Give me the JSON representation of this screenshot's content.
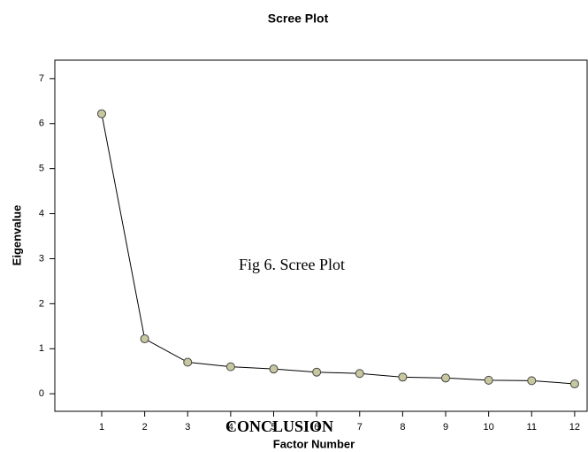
{
  "chart_data": {
    "type": "line",
    "title": "Scree Plot",
    "x_label": "Factor Number",
    "y_label": "Eigenvalue",
    "annotations": [
      "Fig 6. Scree Plot",
      "CONCLUSION"
    ],
    "x": [
      1,
      2,
      3,
      4,
      5,
      6,
      7,
      8,
      9,
      10,
      11,
      12
    ],
    "values": [
      6.22,
      1.22,
      0.7,
      0.6,
      0.55,
      0.48,
      0.45,
      0.37,
      0.35,
      0.3,
      0.29,
      0.22
    ],
    "color": "#000000",
    "marker_color": "#c8c8a0",
    "xlim": [
      -0.09,
      12.29
    ],
    "ylim": [
      -0.39,
      7.41
    ],
    "xticks": [
      1,
      2,
      3,
      4,
      5,
      6,
      7,
      8,
      9,
      10,
      11,
      12
    ],
    "yticks": [
      0,
      1,
      2,
      3,
      4,
      5,
      6,
      7
    ],
    "grid": false
  }
}
